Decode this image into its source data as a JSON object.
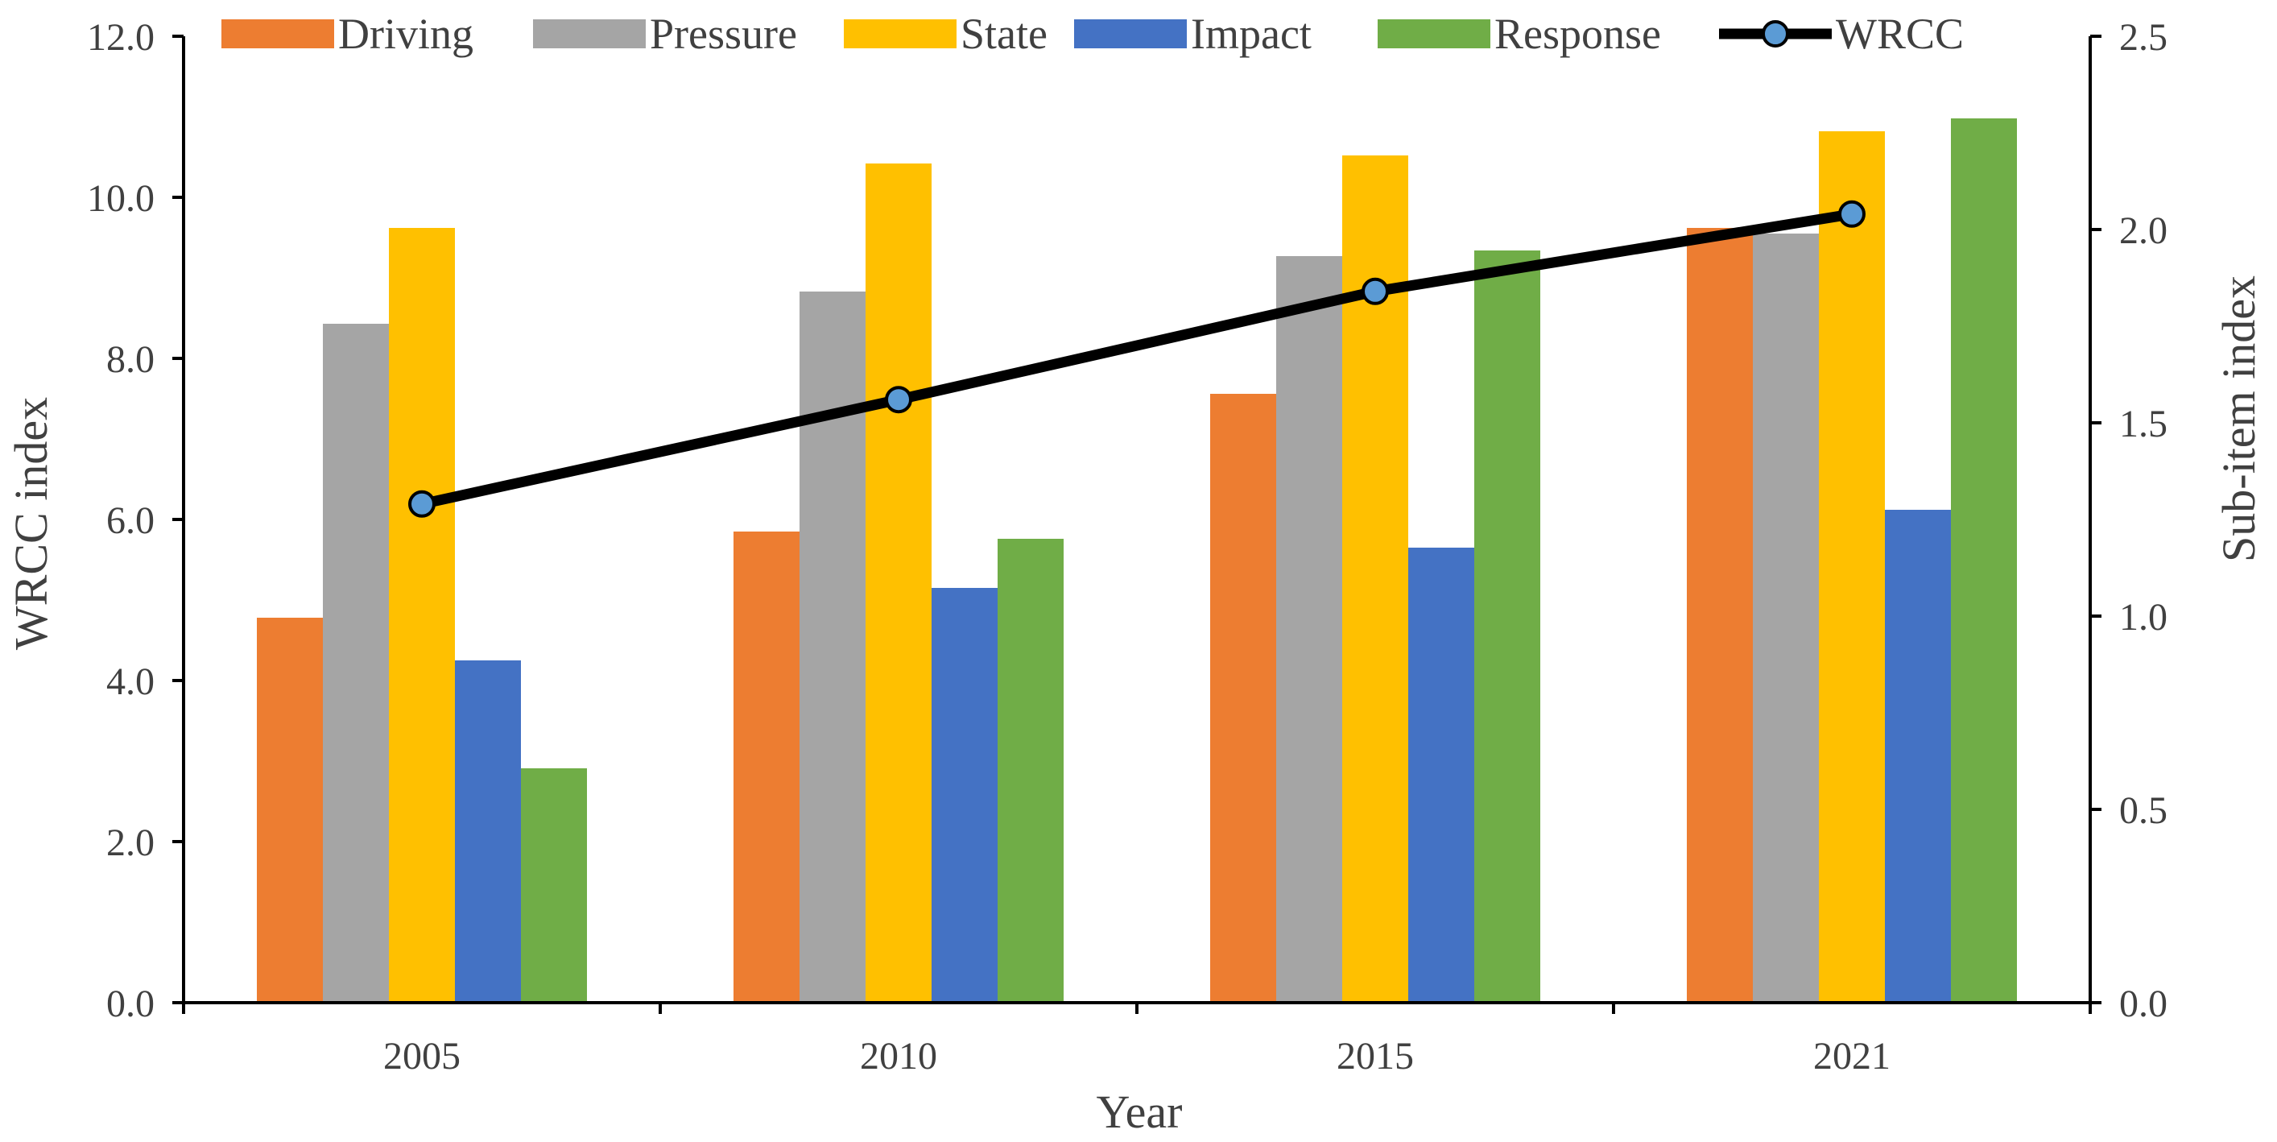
{
  "chart_data": {
    "type": "bar",
    "categories": [
      "2005",
      "2010",
      "2015",
      "2021"
    ],
    "xlabel": "Year",
    "ylabel_left": "WRCC index",
    "ylabel_right": "Sub-item index",
    "ylim_left": [
      0,
      12
    ],
    "ylim_right": [
      0,
      2.5
    ],
    "yticks_left": [
      "0.0",
      "2.0",
      "4.0",
      "6.0",
      "8.0",
      "10.0",
      "12.0"
    ],
    "yticks_right": [
      "0.0",
      "0.5",
      "1.0",
      "1.5",
      "2.0",
      "2.5"
    ],
    "series": [
      {
        "name": "Driving",
        "axis": "left",
        "color": "#ED7D31",
        "values": [
          4.78,
          5.85,
          7.56,
          9.62
        ]
      },
      {
        "name": "Pressure",
        "axis": "left",
        "color": "#A5A5A5",
        "values": [
          8.43,
          8.83,
          9.27,
          9.55
        ]
      },
      {
        "name": "State",
        "axis": "left",
        "color": "#FFC000",
        "values": [
          9.62,
          10.42,
          10.52,
          10.82
        ]
      },
      {
        "name": "Impact",
        "axis": "left",
        "color": "#4472C4",
        "values": [
          4.25,
          5.15,
          5.65,
          6.12
        ]
      },
      {
        "name": "Response",
        "axis": "left",
        "color": "#70AD47",
        "values": [
          2.91,
          5.76,
          9.34,
          10.98
        ]
      }
    ],
    "line_series": {
      "name": "WRCC",
      "axis": "right",
      "color": "#000000",
      "marker_color": "#5B9BD5",
      "values": [
        1.29,
        1.56,
        1.84,
        2.04
      ]
    },
    "legend_position": "top",
    "grid": false
  }
}
